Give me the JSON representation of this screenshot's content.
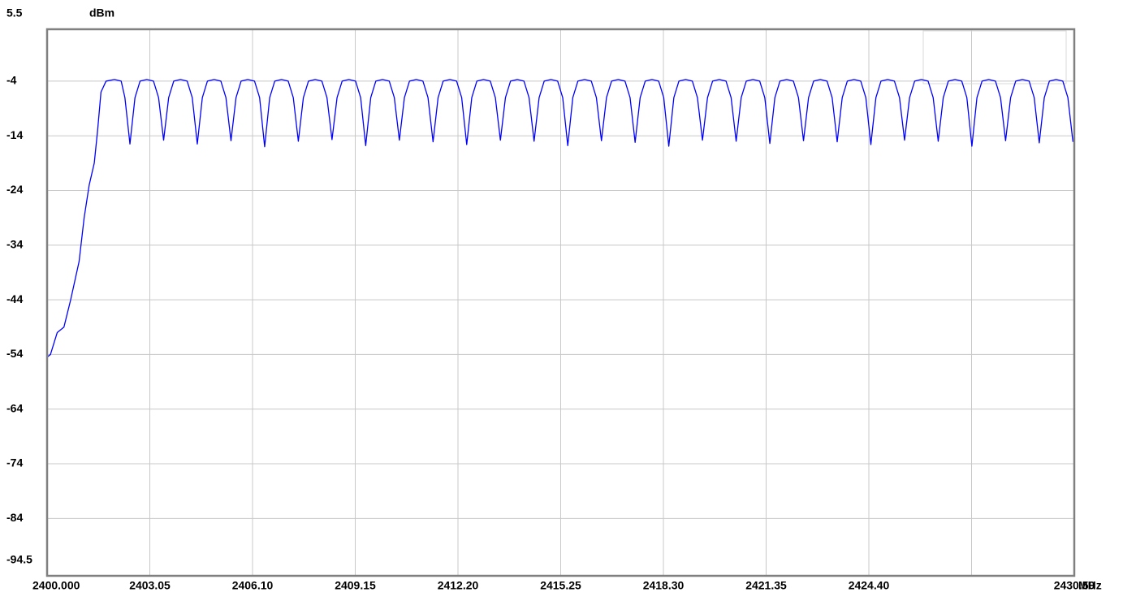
{
  "chart_data": {
    "type": "line",
    "y_unit": "dBm",
    "x_unit": "MHz",
    "color": "#0000ff",
    "grid": true,
    "ylim": [
      -94.5,
      5.5
    ],
    "yticks": [
      5.5,
      -4,
      -14,
      -24,
      -34,
      -44,
      -54,
      -64,
      -74,
      -84,
      -94.5
    ],
    "xlim": [
      2400,
      2430.5
    ],
    "xticks": [
      {
        "value": 2400,
        "label": "2400.000"
      },
      2403.05,
      {
        "value": 2406.1,
        "label": "2406.10"
      },
      2409.15,
      {
        "value": 2412.2,
        "label": "2412.20"
      },
      2415.25,
      {
        "value": 2418.3,
        "label": "2418.30"
      },
      2421.35,
      {
        "value": 2424.4,
        "label": "2424.40"
      },
      {
        "value": 2427.45,
        "label": null
      },
      {
        "value": 2430.5,
        "label": "2430.50"
      }
    ],
    "x": [
      2400,
      2400.1,
      2400.2,
      2400.3,
      2400.5,
      2400.7,
      2400.95,
      2401.1,
      2401.25,
      2401.4,
      2401.5,
      2401.6,
      2401.75,
      2402,
      2402.2,
      2402.31,
      2402.46,
      2402.61,
      2402.76,
      2402.96,
      2403.16,
      2403.31,
      2403.46,
      2403.61,
      2403.76,
      2403.96,
      2404.16,
      2404.31,
      2404.46,
      2404.61,
      2404.76,
      2404.96,
      2405.16,
      2405.31,
      2405.46,
      2405.61,
      2405.76,
      2405.96,
      2406.16,
      2406.31,
      2406.46,
      2406.61,
      2406.76,
      2406.96,
      2407.16,
      2407.31,
      2407.46,
      2407.61,
      2407.76,
      2407.96,
      2408.16,
      2408.31,
      2408.46,
      2408.61,
      2408.76,
      2408.96,
      2409.16,
      2409.31,
      2409.46,
      2409.61,
      2409.76,
      2409.96,
      2410.16,
      2410.31,
      2410.46,
      2410.61,
      2410.76,
      2410.96,
      2411.16,
      2411.31,
      2411.46,
      2411.61,
      2411.76,
      2411.96,
      2412.16,
      2412.31,
      2412.46,
      2412.61,
      2412.76,
      2412.96,
      2413.16,
      2413.31,
      2413.46,
      2413.61,
      2413.76,
      2413.96,
      2414.16,
      2414.31,
      2414.46,
      2414.61,
      2414.76,
      2414.96,
      2415.16,
      2415.31,
      2415.46,
      2415.61,
      2415.76,
      2415.96,
      2416.16,
      2416.31,
      2416.46,
      2416.61,
      2416.76,
      2416.96,
      2417.16,
      2417.31,
      2417.46,
      2417.61,
      2417.76,
      2417.96,
      2418.16,
      2418.31,
      2418.46,
      2418.61,
      2418.76,
      2418.96,
      2419.16,
      2419.31,
      2419.46,
      2419.61,
      2419.76,
      2419.96,
      2420.16,
      2420.31,
      2420.46,
      2420.61,
      2420.76,
      2420.96,
      2421.16,
      2421.31,
      2421.46,
      2421.61,
      2421.76,
      2421.96,
      2422.16,
      2422.31,
      2422.46,
      2422.61,
      2422.76,
      2422.96,
      2423.16,
      2423.31,
      2423.46,
      2423.61,
      2423.76,
      2423.96,
      2424.16,
      2424.31,
      2424.46,
      2424.61,
      2424.76,
      2424.96,
      2425.16,
      2425.31,
      2425.46,
      2425.61,
      2425.76,
      2425.96,
      2426.16,
      2426.31,
      2426.46,
      2426.61,
      2426.76,
      2426.96,
      2427.16,
      2427.31,
      2427.46,
      2427.61,
      2427.76,
      2427.96,
      2428.16,
      2428.31,
      2428.46,
      2428.61,
      2428.76,
      2428.96,
      2429.16,
      2429.31,
      2429.46,
      2429.61,
      2429.76,
      2429.96,
      2430.16,
      2430.31,
      2430.46
    ],
    "values": [
      -54.5,
      -54,
      -52,
      -50,
      -49,
      -44,
      -37,
      -29,
      -23,
      -19,
      -13,
      -6,
      -4,
      -3.7,
      -4,
      -7,
      -15.5,
      -7,
      -4,
      -3.7,
      -4,
      -7,
      -14.8,
      -7,
      -4,
      -3.7,
      -4,
      -7,
      -15.5,
      -7,
      -4,
      -3.7,
      -4,
      -7,
      -14.9,
      -7,
      -4,
      -3.7,
      -4,
      -7,
      -16,
      -7,
      -4,
      -3.7,
      -4,
      -7,
      -15,
      -7,
      -4,
      -3.7,
      -4,
      -7,
      -14.7,
      -7,
      -4,
      -3.7,
      -4,
      -7,
      -15.8,
      -7,
      -4,
      -3.7,
      -4,
      -7,
      -14.8,
      -7,
      -4,
      -3.7,
      -4,
      -7,
      -15.1,
      -7,
      -4,
      -3.7,
      -4,
      -7,
      -15.6,
      -7,
      -4,
      -3.7,
      -4,
      -7,
      -14.8,
      -7,
      -4,
      -3.7,
      -4,
      -7,
      -15,
      -7,
      -4,
      -3.7,
      -4,
      -7,
      -15.8,
      -7,
      -4,
      -3.7,
      -4,
      -7,
      -14.9,
      -7,
      -4,
      -3.7,
      -4,
      -7,
      -15.2,
      -7,
      -4,
      -3.7,
      -4,
      -7,
      -15.9,
      -7,
      -4,
      -3.7,
      -4,
      -7,
      -14.8,
      -7,
      -4,
      -3.7,
      -4,
      -7,
      -15,
      -7,
      -4,
      -3.7,
      -4,
      -7,
      -15.4,
      -7,
      -4,
      -3.7,
      -4,
      -7,
      -14.9,
      -7,
      -4,
      -3.7,
      -4,
      -7,
      -15.1,
      -7,
      -4,
      -3.7,
      -4,
      -7,
      -15.6,
      -7,
      -4,
      -3.7,
      -4,
      -7,
      -14.8,
      -7,
      -4,
      -3.7,
      -4,
      -7,
      -15,
      -7,
      -4,
      -3.7,
      -4,
      -7,
      -15.9,
      -7,
      -4,
      -3.7,
      -4,
      -7,
      -14.9,
      -7,
      -4,
      -3.7,
      -4,
      -7,
      -15.3,
      -7,
      -4,
      -3.7,
      -4,
      -7,
      -15.1
    ]
  }
}
